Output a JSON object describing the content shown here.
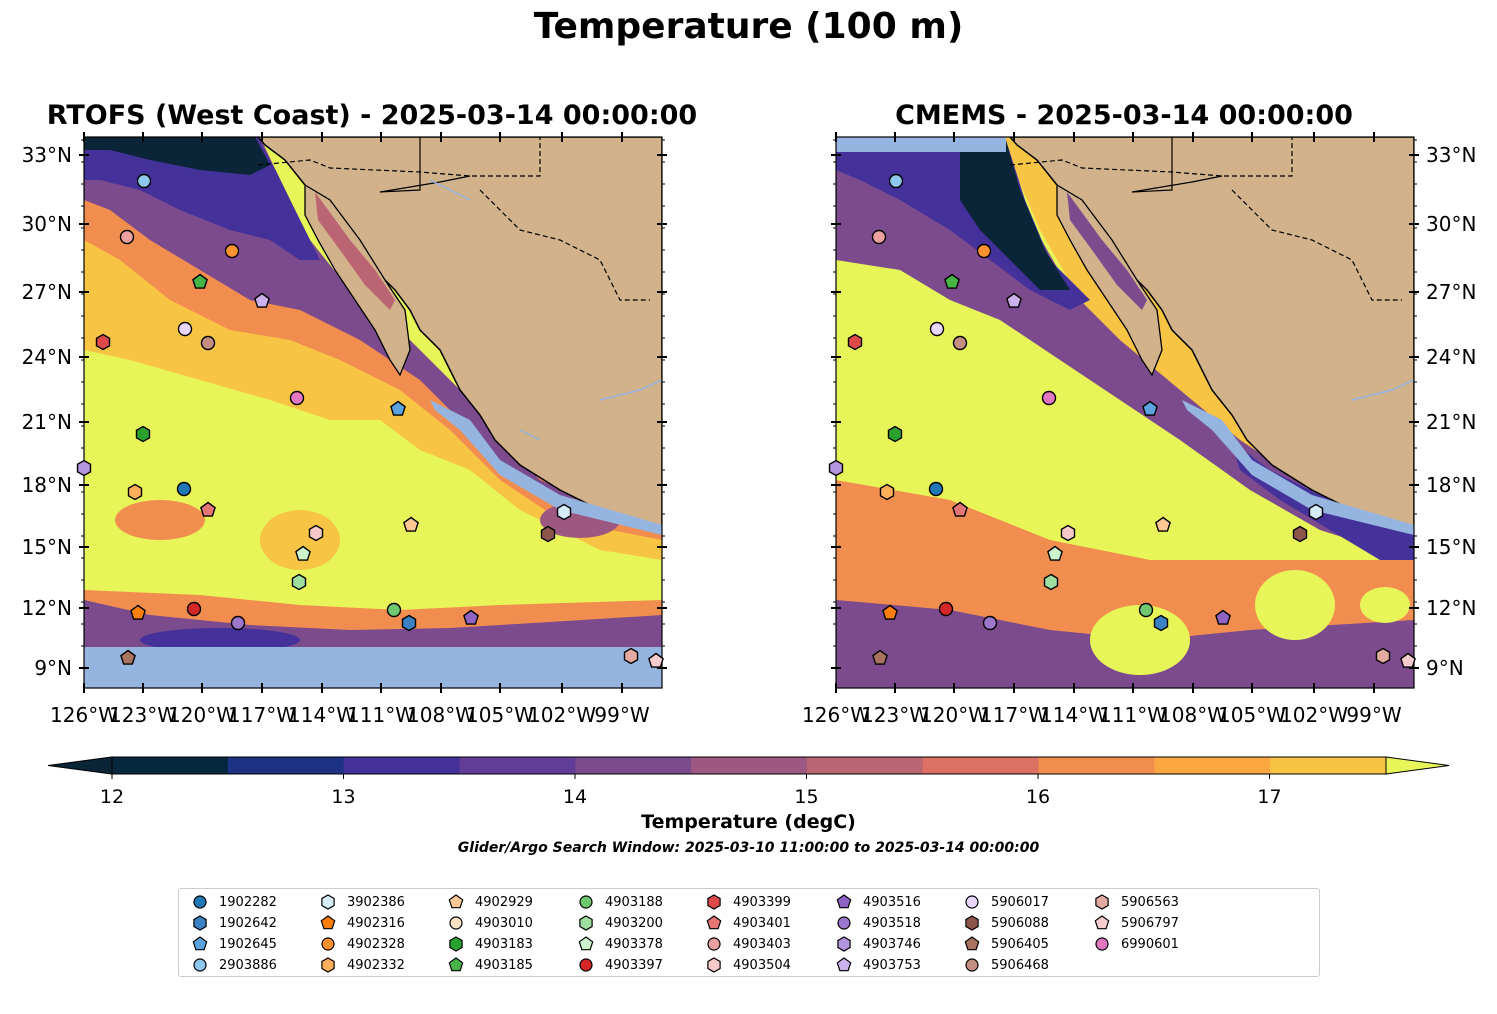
{
  "title": "Temperature (100 m)",
  "panels": [
    {
      "id": "rtofs",
      "title": "RTOFS (West Coast) - 2025-03-14 00:00:00"
    },
    {
      "id": "cmems",
      "title": "CMEMS - 2025-03-14 00:00:00"
    }
  ],
  "axes": {
    "lat_ticks": [
      "33°N",
      "30°N",
      "27°N",
      "24°N",
      "21°N",
      "18°N",
      "15°N",
      "12°N",
      "9°N"
    ],
    "lon_ticks": [
      "126°W",
      "123°W",
      "120°W",
      "117°W",
      "114°W",
      "111°W",
      "108°W",
      "105°W",
      "102°W",
      "99°W"
    ]
  },
  "colorbar": {
    "label": "Temperature (degC)",
    "ticks": [
      "12",
      "13",
      "14",
      "15",
      "16",
      "17"
    ],
    "colors": [
      "#0a2438",
      "#06283e",
      "#1d3284",
      "#45319a",
      "#613c98",
      "#7b4b8e",
      "#9c5880",
      "#bb6472",
      "#dc7063",
      "#f18e4f",
      "#fba843",
      "#f8c443",
      "#e8f559"
    ]
  },
  "search_window": "Glider/Argo Search Window: 2025-03-10 11:00:00 to 2025-03-14 00:00:00",
  "legend": [
    {
      "id": "1902282",
      "marker": "circle",
      "color": "#1f77b4"
    },
    {
      "id": "1902642",
      "marker": "hexagon",
      "color": "#3a82c4"
    },
    {
      "id": "1902645",
      "marker": "pentagon",
      "color": "#5aa3de"
    },
    {
      "id": "2903886",
      "marker": "circle",
      "color": "#8ec8ee"
    },
    {
      "id": "3902386",
      "marker": "hexagon",
      "color": "#d6ecfa"
    },
    {
      "id": "4902316",
      "marker": "pentagon",
      "color": "#ff7f0e"
    },
    {
      "id": "4902328",
      "marker": "circle",
      "color": "#ff922e"
    },
    {
      "id": "4902332",
      "marker": "hexagon",
      "color": "#ffae5c"
    },
    {
      "id": "4902929",
      "marker": "pentagon",
      "color": "#ffc895"
    },
    {
      "id": "4903010",
      "marker": "circle",
      "color": "#ffe1c4"
    },
    {
      "id": "4903183",
      "marker": "hexagon",
      "color": "#2ca02c"
    },
    {
      "id": "4903185",
      "marker": "pentagon",
      "color": "#47b447"
    },
    {
      "id": "4903188",
      "marker": "circle",
      "color": "#6fc86f"
    },
    {
      "id": "4903200",
      "marker": "hexagon",
      "color": "#9ede9e"
    },
    {
      "id": "4903378",
      "marker": "pentagon",
      "color": "#cdf3cd"
    },
    {
      "id": "4903397",
      "marker": "circle",
      "color": "#d62728"
    },
    {
      "id": "4903399",
      "marker": "hexagon",
      "color": "#de4a4a"
    },
    {
      "id": "4903401",
      "marker": "pentagon",
      "color": "#e57575"
    },
    {
      "id": "4903403",
      "marker": "circle",
      "color": "#eda0a0"
    },
    {
      "id": "4903504",
      "marker": "hexagon",
      "color": "#f8c9c9"
    },
    {
      "id": "4903516",
      "marker": "pentagon",
      "color": "#8e63c4"
    },
    {
      "id": "4903518",
      "marker": "circle",
      "color": "#9d77cc"
    },
    {
      "id": "4903746",
      "marker": "hexagon",
      "color": "#b494dc"
    },
    {
      "id": "4903753",
      "marker": "pentagon",
      "color": "#cbb2ec"
    },
    {
      "id": "5906017",
      "marker": "circle",
      "color": "#e7d6fa"
    },
    {
      "id": "5906088",
      "marker": "hexagon",
      "color": "#8c564b"
    },
    {
      "id": "5906405",
      "marker": "pentagon",
      "color": "#a8735f"
    },
    {
      "id": "5906468",
      "marker": "circle",
      "color": "#c48e80"
    },
    {
      "id": "5906563",
      "marker": "hexagon",
      "color": "#e3aaa2"
    },
    {
      "id": "5906797",
      "marker": "pentagon",
      "color": "#f7cccf"
    },
    {
      "id": "6990601",
      "marker": "circle",
      "color": "#e377c2"
    }
  ]
}
